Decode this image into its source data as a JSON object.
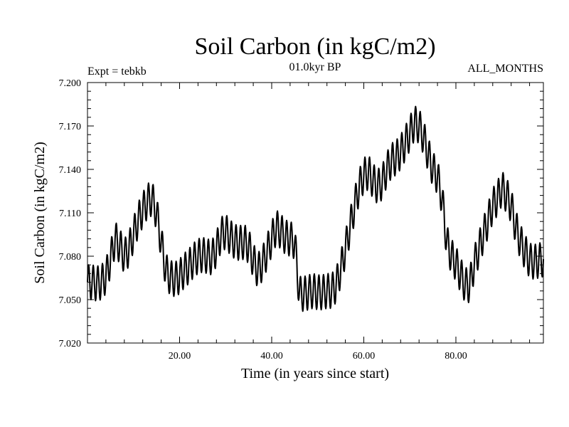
{
  "chart_data": {
    "type": "line",
    "title": "Soil Carbon (in kgC/m2)",
    "subtitle": "01.0kyr BP",
    "experiment_label": "Expt = tebkb",
    "period_label": "ALL_MONTHS",
    "xlabel": "Time (in years since start)",
    "ylabel": "Soil Carbon (in kgC/m2)",
    "xlim": [
      0,
      99
    ],
    "ylim": [
      7.02,
      7.2
    ],
    "x_ticks": [
      {
        "value": 20,
        "label": "20.00"
      },
      {
        "value": 40,
        "label": "40.00"
      },
      {
        "value": 60,
        "label": "60.00"
      },
      {
        "value": 80,
        "label": "80.00"
      }
    ],
    "y_ticks": [
      {
        "value": 7.02,
        "label": "7.020"
      },
      {
        "value": 7.05,
        "label": "7.050"
      },
      {
        "value": 7.08,
        "label": "7.080"
      },
      {
        "value": 7.11,
        "label": "7.110"
      },
      {
        "value": 7.14,
        "label": "7.140"
      },
      {
        "value": 7.17,
        "label": "7.170"
      },
      {
        "value": 7.2,
        "label": "7.200"
      }
    ],
    "grid": false,
    "series": [
      {
        "name": "Soil Carbon",
        "color": "#000000",
        "seasonal_cycle": "annual oscillation of ~0.012 kgC/m2 amplitude superimposed on the annual means",
        "x": [
          0,
          1,
          2,
          3,
          4,
          5,
          6,
          7,
          8,
          9,
          10,
          11,
          12,
          13,
          14,
          15,
          16,
          17,
          18,
          19,
          20,
          21,
          22,
          23,
          24,
          25,
          26,
          27,
          28,
          29,
          30,
          31,
          32,
          33,
          34,
          35,
          36,
          37,
          38,
          39,
          40,
          41,
          42,
          43,
          44,
          45,
          46,
          47,
          48,
          49,
          50,
          51,
          52,
          53,
          54,
          55,
          56,
          57,
          58,
          59,
          60,
          61,
          62,
          63,
          64,
          65,
          66,
          67,
          68,
          69,
          70,
          71,
          72,
          73,
          74,
          75,
          76,
          77,
          78,
          79,
          80,
          81,
          82,
          83,
          84,
          85,
          86,
          87,
          88,
          89,
          90,
          91,
          92,
          93,
          94,
          95,
          96,
          97,
          98,
          99
        ],
        "values": [
          7.062,
          7.062,
          7.061,
          7.062,
          7.066,
          7.078,
          7.092,
          7.087,
          7.08,
          7.085,
          7.095,
          7.105,
          7.112,
          7.118,
          7.12,
          7.11,
          7.09,
          7.07,
          7.065,
          7.064,
          7.066,
          7.07,
          7.073,
          7.077,
          7.08,
          7.081,
          7.08,
          7.079,
          7.085,
          7.095,
          7.097,
          7.093,
          7.09,
          7.089,
          7.09,
          7.087,
          7.077,
          7.07,
          7.075,
          7.083,
          7.092,
          7.1,
          7.097,
          7.093,
          7.092,
          7.09,
          7.054,
          7.054,
          7.055,
          7.056,
          7.055,
          7.055,
          7.056,
          7.056,
          7.06,
          7.071,
          7.085,
          7.1,
          7.115,
          7.128,
          7.136,
          7.138,
          7.132,
          7.128,
          7.131,
          7.14,
          7.146,
          7.148,
          7.152,
          7.158,
          7.165,
          7.172,
          7.17,
          7.162,
          7.15,
          7.14,
          7.135,
          7.12,
          7.09,
          7.08,
          7.075,
          7.067,
          7.06,
          7.06,
          7.075,
          7.085,
          7.095,
          7.105,
          7.115,
          7.12,
          7.127,
          7.122,
          7.115,
          7.1,
          7.09,
          7.083,
          7.077,
          7.076,
          7.077,
          7.078
        ]
      }
    ]
  }
}
